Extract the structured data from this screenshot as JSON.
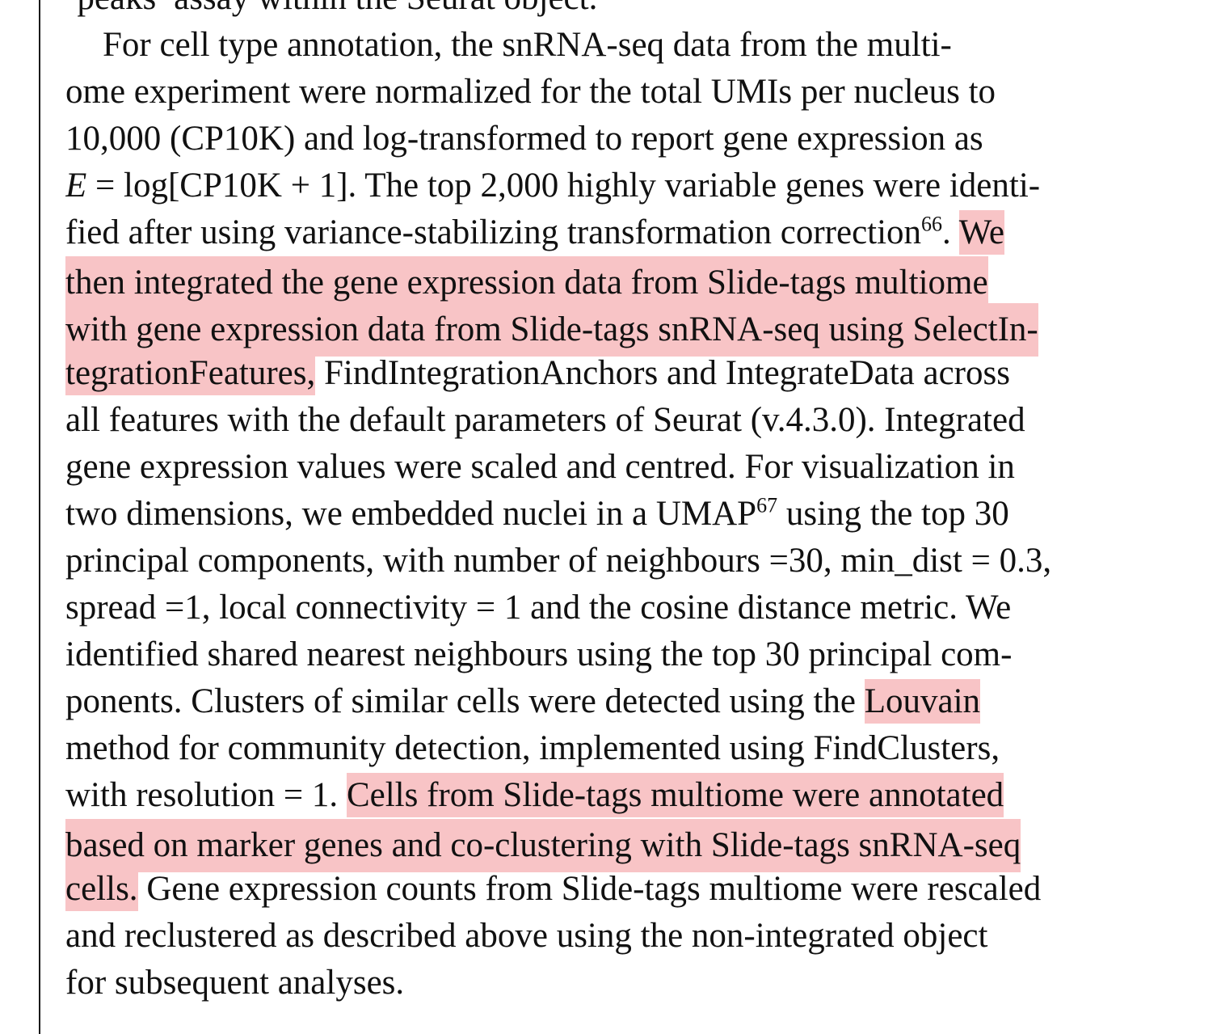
{
  "colors": {
    "highlight": "#f8c4c6",
    "text": "#111111",
    "page_edge": "#1a1a1a"
  },
  "paragraph": {
    "prev_tail": "‘peaks’ assay within the Seurat object.",
    "l1": "For cell type annotation, the snRNA-seq data from the multi-",
    "l2": "ome experiment were normalized for the total UMIs per nucleus to",
    "l3": "10,000 (CP10K) and log-transformed to report gene expression as",
    "l4_var": "E",
    "l4_rest": " = log[CP10K + 1]. The top 2,000 highly variable genes were identi-",
    "l5_a": "fied after using variance-stabilizing transformation correction",
    "l5_ref": "66",
    "l5_b": ". ",
    "l5_hl": "We",
    "l6_hl": "then integrated the gene expression data from Slide-tags multiome",
    "l7_hl": "with gene expression data from Slide-tags snRNA-seq using SelectIn-",
    "l8_hl": "tegrationFeatures,",
    "l8_rest": " FindIntegrationAnchors and IntegrateData across",
    "l9": "all features with the default parameters of Seurat (v.4.3.0). Integrated",
    "l10": "gene expression values were scaled and centred. For visualization in",
    "l11_a": "two dimensions, we embedded nuclei in a UMAP",
    "l11_ref": "67",
    "l11_b": " using the top 30",
    "l12": "principal components, with number of neighbours =30, min_dist = 0.3,",
    "l13": "spread =1, local connectivity = 1 and the cosine distance metric. We",
    "l14": "identified shared nearest neighbours using the top 30 principal com-",
    "l15_a": "ponents. Clusters of similar cells were detected using the ",
    "l15_hl": "Louvain",
    "l16": "method for community detection, implemented using FindClusters,",
    "l17_a": "with resolution = 1. ",
    "l17_hl": "Cells from Slide-tags multiome were annotated",
    "l18_hl": "based on marker genes and co-clustering with Slide-tags snRNA-seq",
    "l19_hl": "cells.",
    "l19_rest": " Gene expression counts from Slide-tags multiome were rescaled",
    "l20": "and reclustered as described above using the non-integrated object",
    "l21": "for subsequent analyses."
  }
}
